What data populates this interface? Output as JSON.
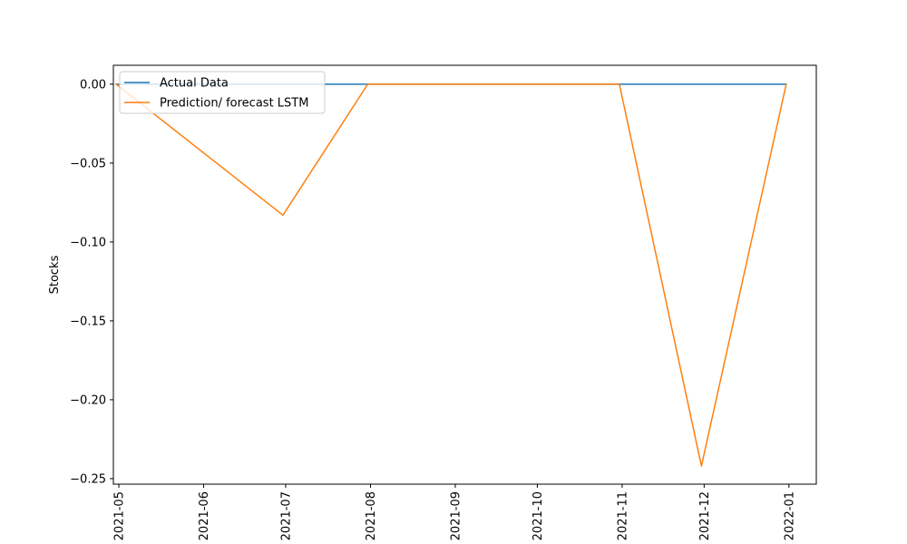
{
  "chart_data": {
    "type": "line",
    "title": "",
    "xlabel": "",
    "ylabel": "Stocks",
    "x_ticks": [
      "2021-05",
      "2021-06",
      "2021-07",
      "2021-08",
      "2021-09",
      "2021-10",
      "2021-11",
      "2021-12",
      "2022-01"
    ],
    "xlim": [
      "2021-04-29",
      "2022-01-11"
    ],
    "y_ticks": [
      0.0,
      -0.05,
      -0.1,
      -0.15,
      -0.2,
      -0.25
    ],
    "y_tick_labels": [
      "0.00",
      "−0.05",
      "−0.10",
      "−0.15",
      "−0.20",
      "−0.25"
    ],
    "ylim": [
      -0.2535,
      0.012
    ],
    "grid": false,
    "legend_position": "top-left",
    "series": [
      {
        "name": "Actual Data",
        "color": "#1f77b4",
        "points": [
          {
            "x": "2021-04-30",
            "y": 0.0
          },
          {
            "x": "2021-05-31",
            "y": 0.0
          },
          {
            "x": "2021-06-30",
            "y": 0.0
          },
          {
            "x": "2021-07-31",
            "y": 0.0
          },
          {
            "x": "2021-08-31",
            "y": 0.0
          },
          {
            "x": "2021-09-30",
            "y": 0.0
          },
          {
            "x": "2021-10-31",
            "y": 0.0
          },
          {
            "x": "2021-11-30",
            "y": 0.0
          },
          {
            "x": "2021-12-31",
            "y": 0.0
          }
        ]
      },
      {
        "name": "Prediction/ forecast LSTM",
        "color": "#ff7f0e",
        "points": [
          {
            "x": "2021-04-30",
            "y": 0.0
          },
          {
            "x": "2021-06-30",
            "y": -0.083
          },
          {
            "x": "2021-07-31",
            "y": 0.0
          },
          {
            "x": "2021-10-31",
            "y": 0.0
          },
          {
            "x": "2021-11-30",
            "y": -0.242
          },
          {
            "x": "2021-12-31",
            "y": 0.0
          }
        ]
      }
    ]
  }
}
